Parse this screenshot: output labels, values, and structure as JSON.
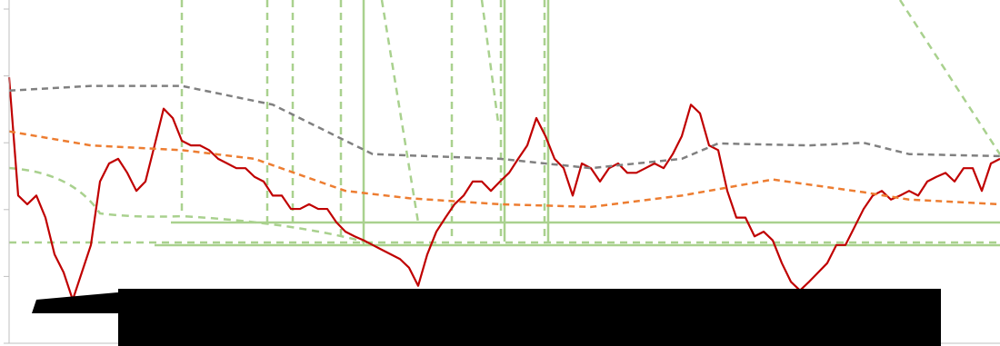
{
  "chart_data": {
    "type": "line",
    "xlim": [
      0,
      109
    ],
    "ylim": [
      0,
      5
    ],
    "yticks": [
      0,
      1,
      2,
      3,
      4,
      5
    ],
    "series": [
      {
        "color": "#c00000",
        "style": "solid",
        "x": [
          0,
          1,
          2,
          3,
          4,
          5,
          6,
          7,
          8,
          9,
          10,
          11,
          12,
          13,
          14,
          15,
          16,
          17,
          18,
          19,
          20,
          21,
          22,
          23,
          24,
          25,
          26,
          27,
          28,
          29,
          30,
          31,
          32,
          33,
          34,
          35,
          36,
          37,
          38,
          39,
          40,
          41,
          42,
          43,
          44,
          45,
          46,
          47,
          48,
          49,
          50,
          51,
          52,
          53,
          54,
          55,
          56,
          57,
          58,
          59,
          60,
          61,
          62,
          63,
          64,
          65,
          66,
          67,
          68,
          69,
          70,
          71,
          72,
          73,
          74,
          75,
          76,
          77,
          78,
          79,
          80,
          81,
          82,
          83,
          84,
          85,
          86,
          87,
          88,
          89,
          90,
          91,
          92,
          93,
          94,
          95,
          96,
          97,
          98,
          99,
          100,
          101,
          102,
          103,
          104,
          105,
          106,
          107,
          108,
          109
        ],
        "values": [
          3.98,
          2.21,
          2.08,
          2.21,
          1.88,
          1.33,
          1.06,
          0.65,
          1.06,
          1.47,
          2.42,
          2.69,
          2.76,
          2.55,
          2.28,
          2.42,
          2.96,
          3.51,
          3.37,
          3.03,
          2.96,
          2.96,
          2.89,
          2.76,
          2.69,
          2.62,
          2.62,
          2.49,
          2.42,
          2.21,
          2.21,
          2.01,
          2.01,
          2.08,
          2.01,
          2.01,
          1.81,
          1.67,
          1.6,
          1.54,
          1.47,
          1.4,
          1.33,
          1.26,
          1.13,
          0.86,
          1.33,
          1.67,
          1.88,
          2.08,
          2.21,
          2.42,
          2.42,
          2.28,
          2.42,
          2.55,
          2.76,
          2.96,
          3.37,
          3.1,
          2.76,
          2.62,
          2.21,
          2.69,
          2.62,
          2.42,
          2.62,
          2.69,
          2.55,
          2.55,
          2.62,
          2.69,
          2.62,
          2.83,
          3.1,
          3.57,
          3.44,
          2.96,
          2.89,
          2.28,
          1.88,
          1.88,
          1.6,
          1.67,
          1.54,
          1.2,
          0.92,
          0.79,
          0.92,
          1.06,
          1.2,
          1.47,
          1.47,
          1.74,
          2.01,
          2.21,
          2.28,
          2.15,
          2.21,
          2.28,
          2.21,
          2.42,
          2.49,
          2.55,
          2.42,
          2.62,
          2.62,
          2.28,
          2.69,
          2.76
        ]
      },
      {
        "color": "#ed7d31",
        "style": "dashed",
        "x": [
          0,
          9,
          19,
          27,
          37,
          44,
          54,
          64,
          74,
          84,
          94,
          99,
          109
        ],
        "values": [
          3.17,
          2.96,
          2.89,
          2.76,
          2.28,
          2.17,
          2.08,
          2.04,
          2.21,
          2.45,
          2.26,
          2.15,
          2.08
        ]
      },
      {
        "color": "#808080",
        "style": "dashed",
        "x": [
          0,
          9,
          19,
          29,
          37,
          40,
          54,
          64,
          74,
          78,
          88,
          94,
          99,
          109
        ],
        "values": [
          3.78,
          3.85,
          3.85,
          3.57,
          3.03,
          2.83,
          2.76,
          2.62,
          2.76,
          2.99,
          2.96,
          3.0,
          2.83,
          2.8
        ]
      }
    ]
  }
}
